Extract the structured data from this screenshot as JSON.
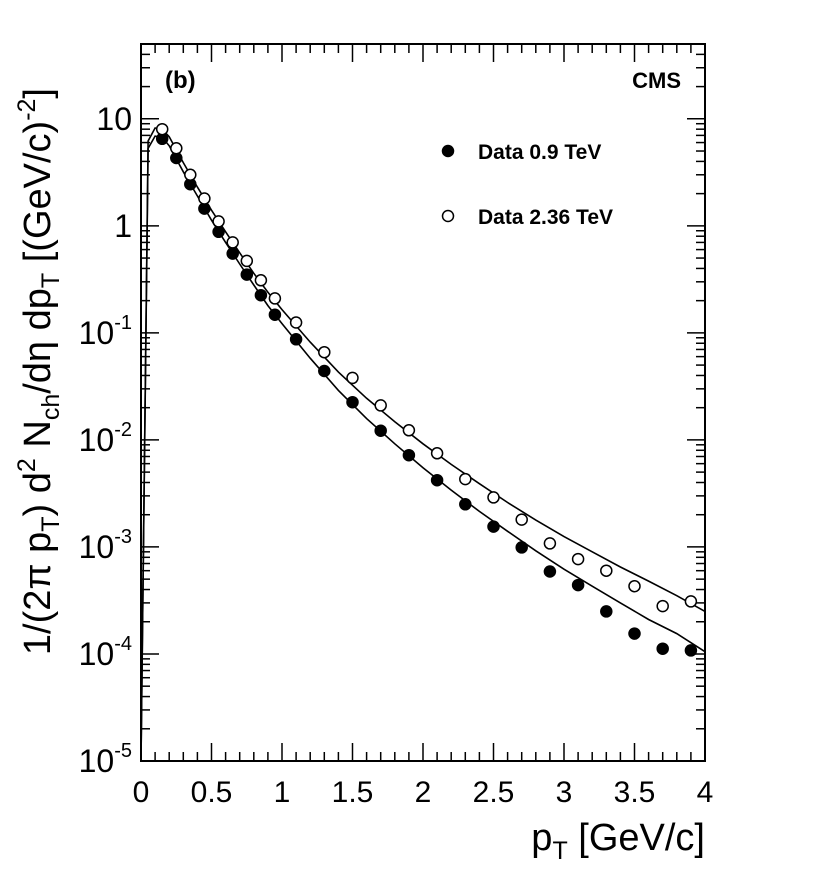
{
  "chart_data": {
    "type": "scatter",
    "panel_label": "(b)",
    "experiment_label": "CMS",
    "xlabel": {
      "main": "p",
      "sub": "T",
      "rest": " [GeV/c]"
    },
    "ylabel": "1/(2π p_T) d² N_ch/dη dp_T [(GeV/c)⁻²]",
    "ylabel_parts": {
      "p1": "1/(2π p",
      "s1": "T",
      "p2": ") d",
      "e1": "2",
      "p3": " N",
      "s2": "ch",
      "p4": "/dη dp",
      "s3": "T",
      "p5": " [(GeV/c)",
      "e2": "-2",
      "p6": "]"
    },
    "xlim": [
      0,
      4
    ],
    "ylim": [
      1e-05,
      50
    ],
    "yscale": "log",
    "x_ticks": [
      {
        "v": 0,
        "t": "0"
      },
      {
        "v": 0.5,
        "t": "0.5"
      },
      {
        "v": 1,
        "t": "1"
      },
      {
        "v": 1.5,
        "t": "1.5"
      },
      {
        "v": 2,
        "t": "2"
      },
      {
        "v": 2.5,
        "t": "2.5"
      },
      {
        "v": 3,
        "t": "3"
      },
      {
        "v": 3.5,
        "t": "3.5"
      },
      {
        "v": 4,
        "t": "4"
      }
    ],
    "y_ticks": [
      {
        "v": 10,
        "t": "10"
      },
      {
        "v": 1,
        "t": "1"
      },
      {
        "v": 0.1,
        "t": "10",
        "e": "-1"
      },
      {
        "v": 0.01,
        "t": "10",
        "e": "-2"
      },
      {
        "v": 0.001,
        "t": "10",
        "e": "-3"
      },
      {
        "v": 0.0001,
        "t": "10",
        "e": "-4"
      },
      {
        "v": 1e-05,
        "t": "10",
        "e": "-5"
      }
    ],
    "legend": {
      "position": "top-right"
    },
    "series": [
      {
        "name": "Data 0.9 TeV",
        "marker": "filled-circle",
        "x": [
          0.15,
          0.25,
          0.35,
          0.45,
          0.55,
          0.65,
          0.75,
          0.85,
          0.95,
          1.1,
          1.3,
          1.5,
          1.7,
          1.9,
          2.1,
          2.3,
          2.5,
          2.7,
          2.9,
          3.1,
          3.3,
          3.5,
          3.7,
          3.9
        ],
        "y": [
          6.5,
          4.3,
          2.45,
          1.45,
          0.88,
          0.55,
          0.35,
          0.225,
          0.148,
          0.087,
          0.044,
          0.0225,
          0.0122,
          0.0072,
          0.0042,
          0.0025,
          0.00155,
          0.00099,
          0.00059,
          0.00044,
          0.00025,
          0.000155,
          0.000112,
          0.000108
        ],
        "fit": [
          [
            0.05,
            5.3
          ],
          [
            0.1,
            6.9
          ],
          [
            0.15,
            6.7
          ],
          [
            0.2,
            5.6
          ],
          [
            0.3,
            3.2
          ],
          [
            0.4,
            1.9
          ],
          [
            0.5,
            1.13
          ],
          [
            0.6,
            0.7
          ],
          [
            0.7,
            0.44
          ],
          [
            0.8,
            0.28
          ],
          [
            0.9,
            0.18
          ],
          [
            1.0,
            0.122
          ],
          [
            1.2,
            0.058
          ],
          [
            1.4,
            0.029
          ],
          [
            1.6,
            0.0158
          ],
          [
            1.8,
            0.0092
          ],
          [
            2.0,
            0.0055
          ],
          [
            2.2,
            0.0034
          ],
          [
            2.4,
            0.00215
          ],
          [
            2.6,
            0.0014
          ],
          [
            2.8,
            0.00092
          ],
          [
            3.0,
            0.00062
          ],
          [
            3.2,
            0.00043
          ],
          [
            3.4,
            0.0003
          ],
          [
            3.6,
            0.00021
          ],
          [
            3.8,
            0.000155
          ],
          [
            4.0,
            0.000105
          ]
        ]
      },
      {
        "name": "Data 2.36 TeV",
        "marker": "open-circle",
        "x": [
          0.15,
          0.25,
          0.35,
          0.45,
          0.55,
          0.65,
          0.75,
          0.85,
          0.95,
          1.1,
          1.3,
          1.5,
          1.7,
          1.9,
          2.1,
          2.3,
          2.5,
          2.7,
          2.9,
          3.1,
          3.3,
          3.5,
          3.7,
          3.9
        ],
        "y": [
          8.0,
          5.3,
          3.0,
          1.8,
          1.1,
          0.7,
          0.47,
          0.31,
          0.21,
          0.125,
          0.066,
          0.038,
          0.021,
          0.0123,
          0.0075,
          0.0043,
          0.0029,
          0.0018,
          0.00108,
          0.00077,
          0.0006,
          0.00043,
          0.00028,
          0.00031
        ],
        "fit": [
          [
            0.05,
            6.2
          ],
          [
            0.1,
            8.2
          ],
          [
            0.15,
            8.0
          ],
          [
            0.2,
            6.8
          ],
          [
            0.3,
            3.9
          ],
          [
            0.4,
            2.3
          ],
          [
            0.5,
            1.4
          ],
          [
            0.6,
            0.88
          ],
          [
            0.7,
            0.56
          ],
          [
            0.8,
            0.36
          ],
          [
            0.9,
            0.24
          ],
          [
            1.0,
            0.165
          ],
          [
            1.2,
            0.082
          ],
          [
            1.4,
            0.043
          ],
          [
            1.6,
            0.0245
          ],
          [
            1.8,
            0.0148
          ],
          [
            2.0,
            0.0092
          ],
          [
            2.2,
            0.0059
          ],
          [
            2.4,
            0.0039
          ],
          [
            2.6,
            0.0026
          ],
          [
            2.8,
            0.00178
          ],
          [
            3.0,
            0.00125
          ],
          [
            3.2,
            0.0009
          ],
          [
            3.4,
            0.00065
          ],
          [
            3.6,
            0.00048
          ],
          [
            3.8,
            0.00035
          ],
          [
            4.0,
            0.00025
          ]
        ]
      }
    ]
  }
}
